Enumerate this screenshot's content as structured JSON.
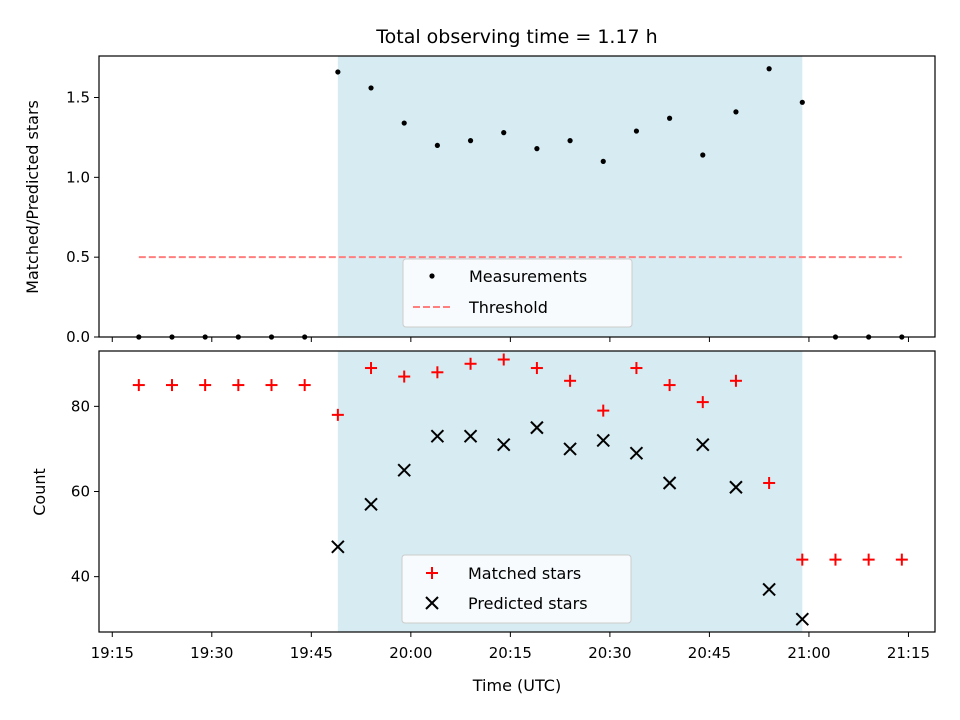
{
  "chart_data": {
    "title": "Total observing time = 1.17 h",
    "xlabel": "Time (UTC)",
    "x_tick_labels": [
      "19:15",
      "19:30",
      "19:45",
      "20:00",
      "20:15",
      "20:30",
      "20:45",
      "21:00",
      "21:15"
    ],
    "xlim": [
      "19:13",
      "21:19"
    ],
    "observing_window": [
      "19:49",
      "20:59"
    ],
    "shade_color": "#add8e6",
    "panels": [
      {
        "type": "scatter",
        "ylabel": "Matched/Predicted stars",
        "ylim": [
          0,
          1.76
        ],
        "y_tick_labels": [
          "0.0",
          "0.5",
          "1.0",
          "1.5"
        ],
        "grid": false,
        "legend_position": "lower center",
        "series": [
          {
            "name": "Measurements",
            "marker": "dot",
            "color": "#000000",
            "points": [
              [
                "19:19",
                0.0
              ],
              [
                "19:24",
                0.0
              ],
              [
                "19:29",
                0.0
              ],
              [
                "19:34",
                0.0
              ],
              [
                "19:39",
                0.0
              ],
              [
                "19:44",
                0.0
              ],
              [
                "19:49",
                1.66
              ],
              [
                "19:54",
                1.56
              ],
              [
                "19:59",
                1.34
              ],
              [
                "20:04",
                1.2
              ],
              [
                "20:09",
                1.23
              ],
              [
                "20:14",
                1.28
              ],
              [
                "20:19",
                1.18
              ],
              [
                "20:24",
                1.23
              ],
              [
                "20:29",
                1.1
              ],
              [
                "20:34",
                1.29
              ],
              [
                "20:39",
                1.37
              ],
              [
                "20:44",
                1.14
              ],
              [
                "20:49",
                1.41
              ],
              [
                "20:54",
                1.68
              ],
              [
                "20:59",
                1.47
              ],
              [
                "21:04",
                0.0
              ],
              [
                "21:09",
                0.0
              ],
              [
                "21:14",
                0.0
              ]
            ]
          },
          {
            "name": "Threshold",
            "marker": "dashed-line",
            "color": "#ff7f7f",
            "points": [
              [
                "19:19",
                0.5
              ],
              [
                "21:14",
                0.5
              ]
            ]
          }
        ]
      },
      {
        "type": "scatter",
        "ylabel": "Count",
        "ylim": [
          27,
          93
        ],
        "y_tick_labels": [
          "40",
          "60",
          "80"
        ],
        "grid": false,
        "legend_position": "lower center",
        "series": [
          {
            "name": "Matched stars",
            "marker": "plus",
            "color": "#ff0000",
            "points": [
              [
                "19:19",
                85
              ],
              [
                "19:24",
                85
              ],
              [
                "19:29",
                85
              ],
              [
                "19:34",
                85
              ],
              [
                "19:39",
                85
              ],
              [
                "19:44",
                85
              ],
              [
                "19:49",
                78
              ],
              [
                "19:54",
                89
              ],
              [
                "19:59",
                87
              ],
              [
                "20:04",
                88
              ],
              [
                "20:09",
                90
              ],
              [
                "20:14",
                91
              ],
              [
                "20:19",
                89
              ],
              [
                "20:24",
                86
              ],
              [
                "20:29",
                79
              ],
              [
                "20:34",
                89
              ],
              [
                "20:39",
                85
              ],
              [
                "20:44",
                81
              ],
              [
                "20:49",
                86
              ],
              [
                "20:54",
                62
              ],
              [
                "20:59",
                44
              ],
              [
                "21:04",
                44
              ],
              [
                "21:09",
                44
              ],
              [
                "21:14",
                44
              ]
            ]
          },
          {
            "name": "Predicted stars",
            "marker": "x",
            "color": "#000000",
            "points": [
              [
                "19:49",
                47
              ],
              [
                "19:54",
                57
              ],
              [
                "19:59",
                65
              ],
              [
                "20:04",
                73
              ],
              [
                "20:09",
                73
              ],
              [
                "20:14",
                71
              ],
              [
                "20:19",
                75
              ],
              [
                "20:24",
                70
              ],
              [
                "20:29",
                72
              ],
              [
                "20:34",
                69
              ],
              [
                "20:39",
                62
              ],
              [
                "20:44",
                71
              ],
              [
                "20:49",
                61
              ],
              [
                "20:54",
                37
              ],
              [
                "20:59",
                30
              ]
            ]
          }
        ]
      }
    ]
  }
}
